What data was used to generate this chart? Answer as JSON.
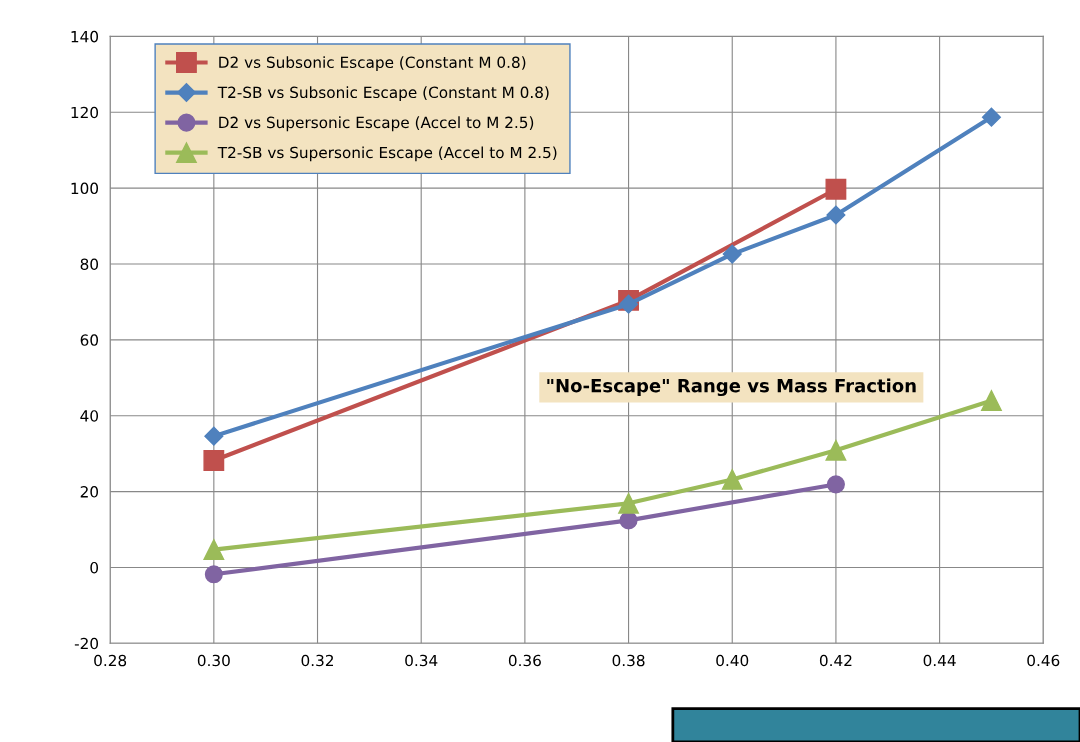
{
  "chart_data": {
    "type": "line",
    "title": "\"No-Escape\" Range vs Mass Fraction",
    "series": [
      {
        "name": "D2 vs Subsonic Escape (Constant M 0.8)",
        "color": "#c0504d",
        "marker": "square",
        "x": [
          0.3,
          0.38,
          0.42
        ],
        "values": [
          28.2,
          70.4,
          99.7
        ]
      },
      {
        "name": "T2-SB vs Subsonic Escape (Constant M 0.8)",
        "color": "#4f81bd",
        "marker": "diamond",
        "x": [
          0.3,
          0.38,
          0.4,
          0.42,
          0.45
        ],
        "values": [
          34.6,
          69.4,
          82.6,
          92.9,
          118.7
        ]
      },
      {
        "name": "D2 vs Supersonic Escape (Accel to M 2.5)",
        "color": "#8064a2",
        "marker": "circle",
        "x": [
          0.3,
          0.38,
          0.42
        ],
        "values": [
          -1.8,
          12.4,
          21.9
        ]
      },
      {
        "name": "T2-SB vs Supersonic Escape (Accel to M 2.5)",
        "color": "#9bbb59",
        "marker": "triangle",
        "x": [
          0.3,
          0.38,
          0.4,
          0.42,
          0.45
        ],
        "values": [
          4.7,
          16.9,
          23.2,
          30.9,
          44.0
        ]
      }
    ],
    "xlim": [
      0.28,
      0.46
    ],
    "xticks": [
      {
        "value": 0.28,
        "label": "0.28"
      },
      {
        "value": 0.3,
        "label": "0.30"
      },
      {
        "value": 0.32,
        "label": "0.32"
      },
      {
        "value": 0.34,
        "label": "0.34"
      },
      {
        "value": 0.36,
        "label": "0.36"
      },
      {
        "value": 0.38,
        "label": "0.38"
      },
      {
        "value": 0.4,
        "label": "0.40"
      },
      {
        "value": 0.42,
        "label": "0.42"
      },
      {
        "value": 0.44,
        "label": "0.44"
      },
      {
        "value": 0.46,
        "label": "0.46"
      }
    ],
    "ylim": [
      -20,
      140
    ],
    "yticks": [
      -20,
      0,
      20,
      40,
      60,
      80,
      100,
      120,
      140
    ],
    "grid": true,
    "legend": "top left",
    "line_style": "solid"
  }
}
